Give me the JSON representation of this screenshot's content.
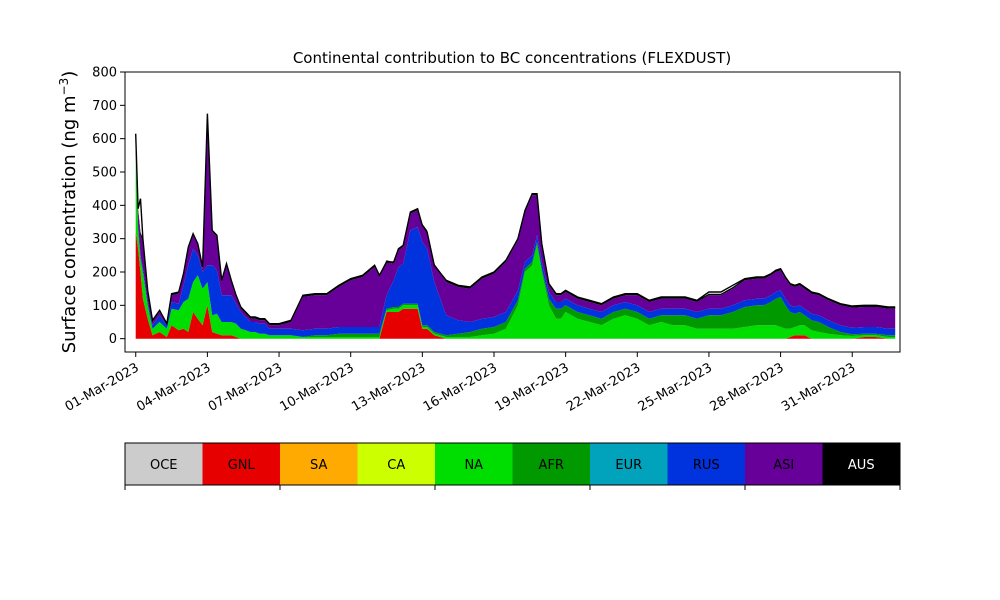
{
  "chart_data": {
    "type": "area",
    "stacked": true,
    "title": "Continental contribution to BC concentrations (FLEXDUST)",
    "ylabel_main": "Surface concentration (ng m",
    "ylabel_sup": "−3",
    "ylabel_close": ")",
    "xlabel": "",
    "ylim": [
      -40,
      800
    ],
    "yticks": [
      0,
      100,
      200,
      300,
      400,
      500,
      600,
      700,
      800
    ],
    "xaxis": {
      "start": "2023-03-01",
      "end": "2023-04-01",
      "range_days": [
        -0.45,
        32.0
      ]
    },
    "xtick_labels": [
      "01-Mar-2023",
      "04-Mar-2023",
      "07-Mar-2023",
      "10-Mar-2023",
      "13-Mar-2023",
      "16-Mar-2023",
      "19-Mar-2023",
      "22-Mar-2023",
      "25-Mar-2023",
      "28-Mar-2023",
      "31-Mar-2023"
    ],
    "xtick_days": [
      0,
      3,
      6,
      9,
      12,
      15,
      18,
      21,
      24,
      27,
      30
    ],
    "grid": false,
    "legend_position": "bottom (colorbar)",
    "categories": [
      "OCE",
      "GNL",
      "SA",
      "CA",
      "NA",
      "AFR",
      "EUR",
      "RUS",
      "ASI",
      "AUS"
    ],
    "colors": [
      "#cccccc",
      "#e60000",
      "#ffaa00",
      "#ccff00",
      "#00dd00",
      "#009900",
      "#00a3bb",
      "#0033dd",
      "#660099",
      "#000000"
    ],
    "label_colors": [
      "#000000",
      "#000000",
      "#000000",
      "#000000",
      "#000000",
      "#000000",
      "#000000",
      "#000000",
      "#000000",
      "#ffffff"
    ],
    "x": [
      0,
      0.1,
      0.2,
      0.3,
      0.5,
      0.7,
      1,
      1.3,
      1.5,
      1.8,
      2,
      2.2,
      2.4,
      2.6,
      2.8,
      3,
      3.2,
      3.4,
      3.6,
      3.8,
      4,
      4.2,
      4.4,
      4.6,
      4.8,
      5,
      5.2,
      5.4,
      5.6,
      5.8,
      6,
      6.5,
      7,
      7.5,
      8,
      8.5,
      9,
      9.5,
      10,
      10.2,
      10.5,
      10.8,
      11,
      11.2,
      11.5,
      11.8,
      12,
      12.2,
      12.5,
      13,
      13.5,
      14,
      14.5,
      15,
      15.5,
      16,
      16.3,
      16.6,
      16.8,
      17,
      17.3,
      17.6,
      17.8,
      18,
      18.5,
      19,
      19.5,
      20,
      20.5,
      21,
      21.5,
      22,
      22.5,
      23,
      23.5,
      24,
      24.5,
      25,
      25.5,
      26,
      26.3,
      26.6,
      26.8,
      27,
      27.2,
      27.4,
      27.6,
      27.8,
      28,
      28.3,
      28.6,
      29,
      29.5,
      30,
      30.5,
      31,
      31.5,
      31.8
    ],
    "series": [
      {
        "name": "GNL",
        "values": [
          320,
          270,
          200,
          120,
          60,
          10,
          20,
          5,
          40,
          25,
          30,
          20,
          80,
          60,
          40,
          100,
          20,
          15,
          10,
          10,
          10,
          5,
          0,
          0,
          0,
          0,
          0,
          0,
          0,
          0,
          0,
          0,
          0,
          0,
          0,
          0,
          0,
          0,
          0,
          0,
          80,
          80,
          80,
          90,
          90,
          90,
          30,
          30,
          10,
          0,
          0,
          0,
          0,
          0,
          0,
          0,
          0,
          0,
          0,
          0,
          0,
          0,
          0,
          0,
          0,
          0,
          0,
          0,
          0,
          0,
          0,
          0,
          0,
          0,
          0,
          0,
          0,
          0,
          0,
          0,
          0,
          0,
          0,
          0,
          0,
          5,
          10,
          10,
          10,
          0,
          0,
          0,
          0,
          0,
          5,
          5,
          0,
          0
        ]
      },
      {
        "name": "NA",
        "values": [
          230,
          60,
          40,
          80,
          40,
          20,
          30,
          25,
          50,
          60,
          80,
          100,
          90,
          130,
          110,
          70,
          50,
          60,
          40,
          40,
          40,
          40,
          30,
          25,
          20,
          20,
          15,
          15,
          10,
          10,
          10,
          10,
          5,
          5,
          5,
          5,
          5,
          5,
          5,
          5,
          5,
          10,
          10,
          10,
          10,
          10,
          5,
          5,
          5,
          5,
          5,
          5,
          10,
          15,
          30,
          100,
          200,
          220,
          280,
          200,
          100,
          60,
          60,
          80,
          60,
          50,
          40,
          60,
          70,
          60,
          40,
          50,
          40,
          40,
          30,
          30,
          30,
          30,
          35,
          40,
          40,
          40,
          40,
          35,
          30,
          25,
          25,
          30,
          30,
          25,
          20,
          15,
          10,
          8,
          5,
          5,
          5,
          5
        ]
      },
      {
        "name": "AFR",
        "values": [
          0,
          0,
          0,
          0,
          0,
          0,
          0,
          0,
          0,
          0,
          0,
          0,
          0,
          0,
          0,
          0,
          0,
          0,
          0,
          0,
          0,
          0,
          0,
          0,
          0,
          0,
          0,
          0,
          0,
          0,
          0,
          0,
          0,
          5,
          5,
          10,
          10,
          10,
          10,
          10,
          5,
          5,
          5,
          5,
          5,
          5,
          5,
          5,
          5,
          5,
          10,
          15,
          20,
          20,
          20,
          15,
          10,
          10,
          10,
          10,
          20,
          30,
          30,
          20,
          20,
          20,
          20,
          20,
          20,
          20,
          20,
          20,
          30,
          30,
          30,
          40,
          40,
          50,
          60,
          60,
          60,
          70,
          80,
          90,
          70,
          50,
          40,
          40,
          30,
          30,
          30,
          20,
          10,
          5,
          5,
          5,
          5,
          5
        ]
      },
      {
        "name": "RUS",
        "values": [
          10,
          10,
          10,
          10,
          10,
          10,
          20,
          10,
          20,
          20,
          50,
          100,
          100,
          60,
          50,
          50,
          150,
          130,
          80,
          80,
          80,
          60,
          50,
          40,
          30,
          30,
          30,
          30,
          20,
          20,
          20,
          20,
          20,
          20,
          20,
          20,
          20,
          20,
          20,
          20,
          40,
          80,
          120,
          120,
          220,
          230,
          250,
          230,
          150,
          60,
          40,
          30,
          30,
          30,
          30,
          30,
          20,
          20,
          20,
          20,
          20,
          20,
          20,
          20,
          20,
          20,
          20,
          20,
          20,
          20,
          20,
          20,
          20,
          20,
          20,
          20,
          20,
          20,
          20,
          20,
          20,
          20,
          20,
          20,
          20,
          20,
          20,
          20,
          20,
          20,
          20,
          20,
          20,
          20,
          20,
          20,
          20,
          20
        ]
      },
      {
        "name": "ASI",
        "values": [
          40,
          40,
          60,
          80,
          30,
          10,
          10,
          5,
          20,
          30,
          30,
          50,
          40,
          30,
          10,
          450,
          100,
          100,
          40,
          90,
          40,
          20,
          10,
          10,
          10,
          10,
          10,
          10,
          10,
          10,
          10,
          20,
          100,
          100,
          100,
          120,
          140,
          150,
          180,
          150,
          100,
          50,
          50,
          50,
          50,
          50,
          50,
          50,
          50,
          100,
          100,
          100,
          120,
          130,
          150,
          150,
          150,
          180,
          120,
          50,
          20,
          20,
          20,
          20,
          20,
          20,
          20,
          20,
          20,
          30,
          30,
          30,
          30,
          30,
          30,
          40,
          40,
          50,
          60,
          60,
          60,
          60,
          60,
          60,
          60,
          60,
          60,
          60,
          60,
          60,
          60,
          60,
          60,
          60,
          60,
          60,
          60,
          60
        ]
      },
      {
        "name": "AUS",
        "values": [
          10,
          10,
          10,
          10,
          5,
          5,
          5,
          5,
          5,
          5,
          5,
          5,
          5,
          5,
          5,
          5,
          5,
          5,
          5,
          5,
          5,
          5,
          5,
          5,
          5,
          5,
          5,
          5,
          5,
          5,
          5,
          5,
          5,
          5,
          5,
          5,
          5,
          5,
          5,
          5,
          5,
          5,
          5,
          5,
          5,
          5,
          5,
          5,
          5,
          5,
          5,
          5,
          5,
          5,
          5,
          5,
          5,
          5,
          5,
          5,
          5,
          5,
          5,
          5,
          5,
          5,
          5,
          5,
          5,
          5,
          5,
          5,
          5,
          5,
          5,
          5,
          5,
          5,
          5,
          5,
          5,
          5,
          5,
          5,
          5,
          5,
          5,
          5,
          5,
          5,
          5,
          5,
          5,
          5,
          5,
          5,
          5,
          5
        ]
      }
    ],
    "total": [
      615,
      390,
      420,
      300,
      145,
      55,
      85,
      45,
      135,
      140,
      195,
      275,
      315,
      285,
      215,
      675,
      325,
      310,
      175,
      225,
      175,
      130,
      95,
      80,
      65,
      65,
      60,
      60,
      45,
      45,
      45,
      55,
      130,
      135,
      135,
      160,
      180,
      190,
      220,
      190,
      230,
      230,
      270,
      280,
      380,
      390,
      340,
      320,
      220,
      175,
      160,
      155,
      185,
      200,
      235,
      300,
      385,
      435,
      435,
      285,
      165,
      135,
      135,
      145,
      125,
      115,
      105,
      125,
      135,
      135,
      115,
      125,
      125,
      125,
      115,
      140,
      140,
      160,
      180,
      185,
      185,
      195,
      205,
      210,
      185,
      165,
      160,
      165,
      155,
      140,
      135,
      120,
      105,
      98,
      100,
      100,
      95,
      95
    ]
  }
}
